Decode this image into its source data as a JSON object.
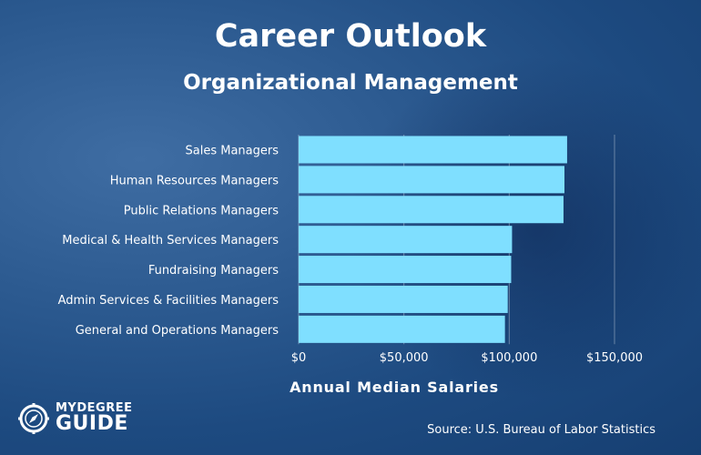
{
  "chart_data": {
    "type": "bar",
    "orientation": "horizontal",
    "title": "Career Outlook",
    "subtitle": "Organizational Management",
    "xlabel": "Annual Median Salaries",
    "ylabel": "",
    "categories": [
      "Sales Managers",
      "Human Resources Managers",
      "Public Relations Managers",
      "Medical & Health Services Managers",
      "Fundraising Managers",
      "Admin Services & Facilities Managers",
      "General and Operations Managers"
    ],
    "values": [
      127490,
      126230,
      125780,
      101340,
      100930,
      99290,
      97970
    ],
    "xlim": [
      0,
      150000
    ],
    "xticks": [
      0,
      50000,
      100000,
      150000
    ],
    "xtick_labels": [
      "$0",
      "$50,000",
      "$100,000",
      "$150,000"
    ],
    "bar_color": "#7fdfff",
    "grid": "vertical",
    "legend": "none"
  },
  "footer": {
    "source": "Source: U.S. Bureau of Labor Statistics",
    "logo_top": "MYDEGREE",
    "logo_bottom": "GUIDE",
    "logo_icon": "compass-icon"
  }
}
